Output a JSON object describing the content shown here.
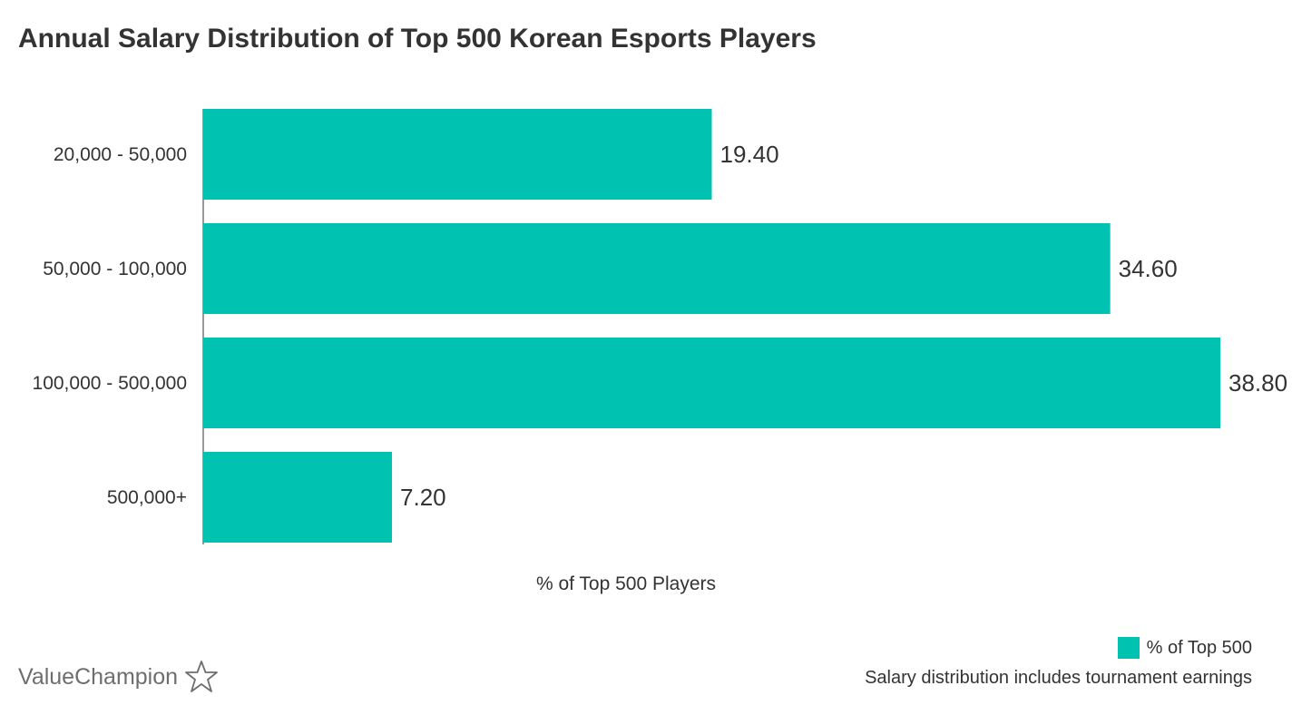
{
  "chart_data": {
    "type": "bar",
    "orientation": "horizontal",
    "title": "Annual Salary Distribution of Top 500 Korean Esports Players",
    "xlabel": "% of Top 500 Players",
    "ylabel": "",
    "categories": [
      "20,000 - 50,000",
      "50,000 - 100,000",
      "100,000 - 500,000",
      "500,000+"
    ],
    "series": [
      {
        "name": "% of Top 500",
        "values": [
          19.4,
          34.6,
          38.8,
          7.2
        ],
        "value_labels": [
          "19.40",
          "34.60",
          "38.80",
          "7.20"
        ],
        "color": "#00c2b0"
      }
    ],
    "xlim": [
      0,
      38.8
    ],
    "grid": false,
    "legend_position": "bottom-right"
  },
  "legend": {
    "label": "% of Top 500",
    "color": "#00c2b0"
  },
  "note": "Salary distribution includes tournament earnings",
  "brand": {
    "name": "ValueChampion",
    "icon": "star-outline-icon"
  }
}
